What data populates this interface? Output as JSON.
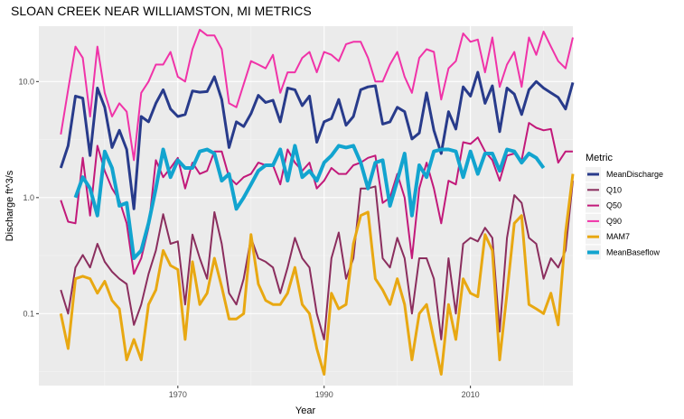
{
  "chart_data": {
    "type": "line",
    "title": "SLOAN CREEK NEAR WILLIAMSTON, MI  METRICS",
    "xlabel": "Year",
    "ylabel": "Discharge ft^3/s",
    "y_scale": "log10",
    "xlim": [
      1951,
      2024
    ],
    "ylim": [
      0.024,
      30
    ],
    "x_ticks": [
      1970,
      1990,
      2010
    ],
    "y_ticks": [
      {
        "value": 0.1,
        "label": "0.1"
      },
      {
        "value": 1,
        "label": "1.0"
      },
      {
        "value": 10,
        "label": "10.0"
      }
    ],
    "grid": true,
    "legend": {
      "title": "Metric",
      "position": "right"
    },
    "start_year": 1954,
    "series": [
      {
        "name": "MeanDischarge",
        "color": "#283b8b",
        "width": 3,
        "values": [
          1.8,
          2.8,
          7.5,
          7.2,
          2.3,
          8.8,
          6.0,
          2.7,
          3.8,
          2.6,
          0.8,
          5.0,
          4.5,
          6.5,
          8.5,
          5.8,
          5.0,
          5.2,
          8.3,
          8.1,
          8.2,
          11.0,
          7.0,
          2.7,
          4.5,
          4.1,
          5.3,
          7.6,
          6.6,
          6.9,
          4.5,
          8.8,
          8.5,
          6.2,
          7.5,
          3.0,
          4.5,
          4.8,
          7.0,
          4.2,
          5.0,
          8.5,
          9.0,
          9.2,
          4.3,
          4.5,
          6.0,
          5.5,
          3.2,
          3.6,
          8.0,
          3.8,
          2.4,
          5.5,
          3.9,
          9.0,
          7.5,
          12.0,
          6.5,
          9.2,
          3.7,
          8.8,
          7.8,
          5.2,
          8.5,
          10.0,
          8.8,
          8.0,
          7.3,
          5.8,
          9.8
        ]
      },
      {
        "name": "Q10",
        "color": "#8b2e5e",
        "width": 2,
        "values": [
          0.16,
          0.1,
          0.25,
          0.32,
          0.25,
          0.4,
          0.28,
          0.23,
          0.2,
          0.18,
          0.08,
          0.12,
          0.22,
          0.35,
          0.72,
          0.4,
          0.42,
          0.12,
          0.48,
          0.3,
          0.2,
          0.75,
          0.4,
          0.15,
          0.12,
          0.2,
          0.45,
          0.3,
          0.28,
          0.25,
          0.15,
          0.25,
          0.45,
          0.3,
          0.25,
          0.1,
          0.06,
          0.3,
          0.5,
          0.2,
          0.3,
          1.2,
          1.2,
          1.25,
          0.3,
          0.25,
          0.45,
          0.3,
          0.1,
          0.3,
          0.3,
          0.2,
          0.06,
          0.3,
          0.1,
          0.4,
          0.45,
          0.42,
          0.55,
          0.45,
          0.07,
          0.45,
          1.05,
          0.9,
          0.45,
          0.4,
          0.2,
          0.3,
          0.25,
          0.35,
          1.4
        ]
      },
      {
        "name": "Q50",
        "color": "#c2197a",
        "width": 2,
        "values": [
          0.95,
          0.62,
          0.6,
          2.2,
          0.7,
          2.8,
          1.7,
          1.2,
          0.95,
          0.6,
          0.22,
          0.3,
          0.55,
          2.1,
          1.5,
          1.8,
          2.2,
          1.2,
          2.0,
          1.6,
          1.7,
          2.5,
          2.5,
          1.5,
          1.3,
          1.5,
          1.6,
          2.0,
          1.9,
          1.9,
          1.3,
          2.6,
          2.0,
          1.7,
          2.0,
          1.2,
          1.4,
          1.8,
          1.6,
          1.6,
          1.9,
          2.0,
          2.2,
          2.3,
          0.9,
          1.0,
          1.6,
          1.0,
          0.3,
          1.2,
          2.0,
          1.2,
          0.6,
          1.4,
          1.3,
          3.0,
          2.9,
          3.3,
          2.5,
          2.1,
          1.4,
          2.3,
          2.4,
          2.1,
          4.4,
          4.0,
          3.8,
          3.9,
          2.0,
          2.5,
          2.5
        ]
      },
      {
        "name": "Q90",
        "color": "#f033a8",
        "width": 2,
        "values": [
          3.5,
          8.5,
          20.0,
          16.0,
          5.0,
          20.0,
          8.0,
          5.0,
          6.5,
          5.5,
          2.1,
          8.0,
          10.0,
          14.0,
          14.0,
          18.0,
          11.0,
          10.0,
          19.0,
          28.0,
          25.0,
          25.0,
          19.0,
          6.5,
          6.0,
          9.5,
          15.0,
          14.0,
          13.0,
          17.0,
          8.0,
          12.0,
          12.0,
          16.0,
          18.0,
          12.0,
          18.0,
          17.0,
          15.0,
          21.0,
          22.0,
          22.0,
          16.0,
          10.0,
          10.0,
          14.0,
          18.0,
          11.0,
          8.0,
          16.0,
          19.0,
          18.0,
          7.0,
          13.0,
          15.0,
          26.0,
          22.0,
          23.0,
          12.0,
          24.0,
          9.0,
          14.0,
          18.0,
          9.0,
          24.0,
          17.0,
          27.0,
          20.0,
          15.0,
          13.0,
          24.0
        ]
      },
      {
        "name": "MAM7",
        "color": "#e8a812",
        "width": 3,
        "values": [
          0.1,
          0.05,
          0.2,
          0.21,
          0.2,
          0.15,
          0.19,
          0.13,
          0.11,
          0.04,
          0.06,
          0.04,
          0.12,
          0.16,
          0.35,
          0.26,
          0.24,
          0.06,
          0.28,
          0.12,
          0.15,
          0.3,
          0.17,
          0.09,
          0.09,
          0.1,
          0.48,
          0.18,
          0.13,
          0.12,
          0.12,
          0.15,
          0.25,
          0.12,
          0.1,
          0.05,
          0.03,
          0.15,
          0.11,
          0.12,
          0.4,
          0.7,
          0.75,
          0.2,
          0.16,
          0.12,
          0.2,
          0.12,
          0.04,
          0.1,
          0.12,
          0.06,
          0.03,
          0.12,
          0.06,
          0.2,
          0.15,
          0.14,
          0.48,
          0.35,
          0.04,
          0.15,
          0.6,
          0.7,
          0.12,
          0.11,
          0.1,
          0.15,
          0.08,
          0.5,
          1.6
        ]
      },
      {
        "name": "MeanBaseflow",
        "color": "#12a4cf",
        "width": 4,
        "start_year": 1956,
        "values": [
          1.0,
          1.5,
          1.2,
          0.7,
          2.5,
          1.8,
          0.85,
          0.9,
          0.3,
          0.35,
          0.6,
          1.2,
          2.6,
          1.5,
          2.1,
          1.8,
          1.8,
          2.5,
          2.6,
          2.4,
          1.4,
          1.6,
          0.8,
          1.0,
          1.3,
          1.7,
          1.9,
          1.9,
          2.6,
          1.4,
          2.8,
          1.5,
          1.7,
          1.4,
          2.0,
          2.3,
          2.8,
          2.7,
          2.8,
          2.0,
          1.2,
          2.0,
          2.1,
          0.85,
          1.4,
          2.4,
          0.7,
          1.9,
          1.5,
          2.5,
          2.6,
          2.6,
          2.5,
          1.5,
          2.5,
          1.6,
          2.4,
          2.4,
          1.7,
          2.6,
          2.5,
          2.0,
          2.4,
          2.2,
          1.8
        ]
      }
    ]
  }
}
